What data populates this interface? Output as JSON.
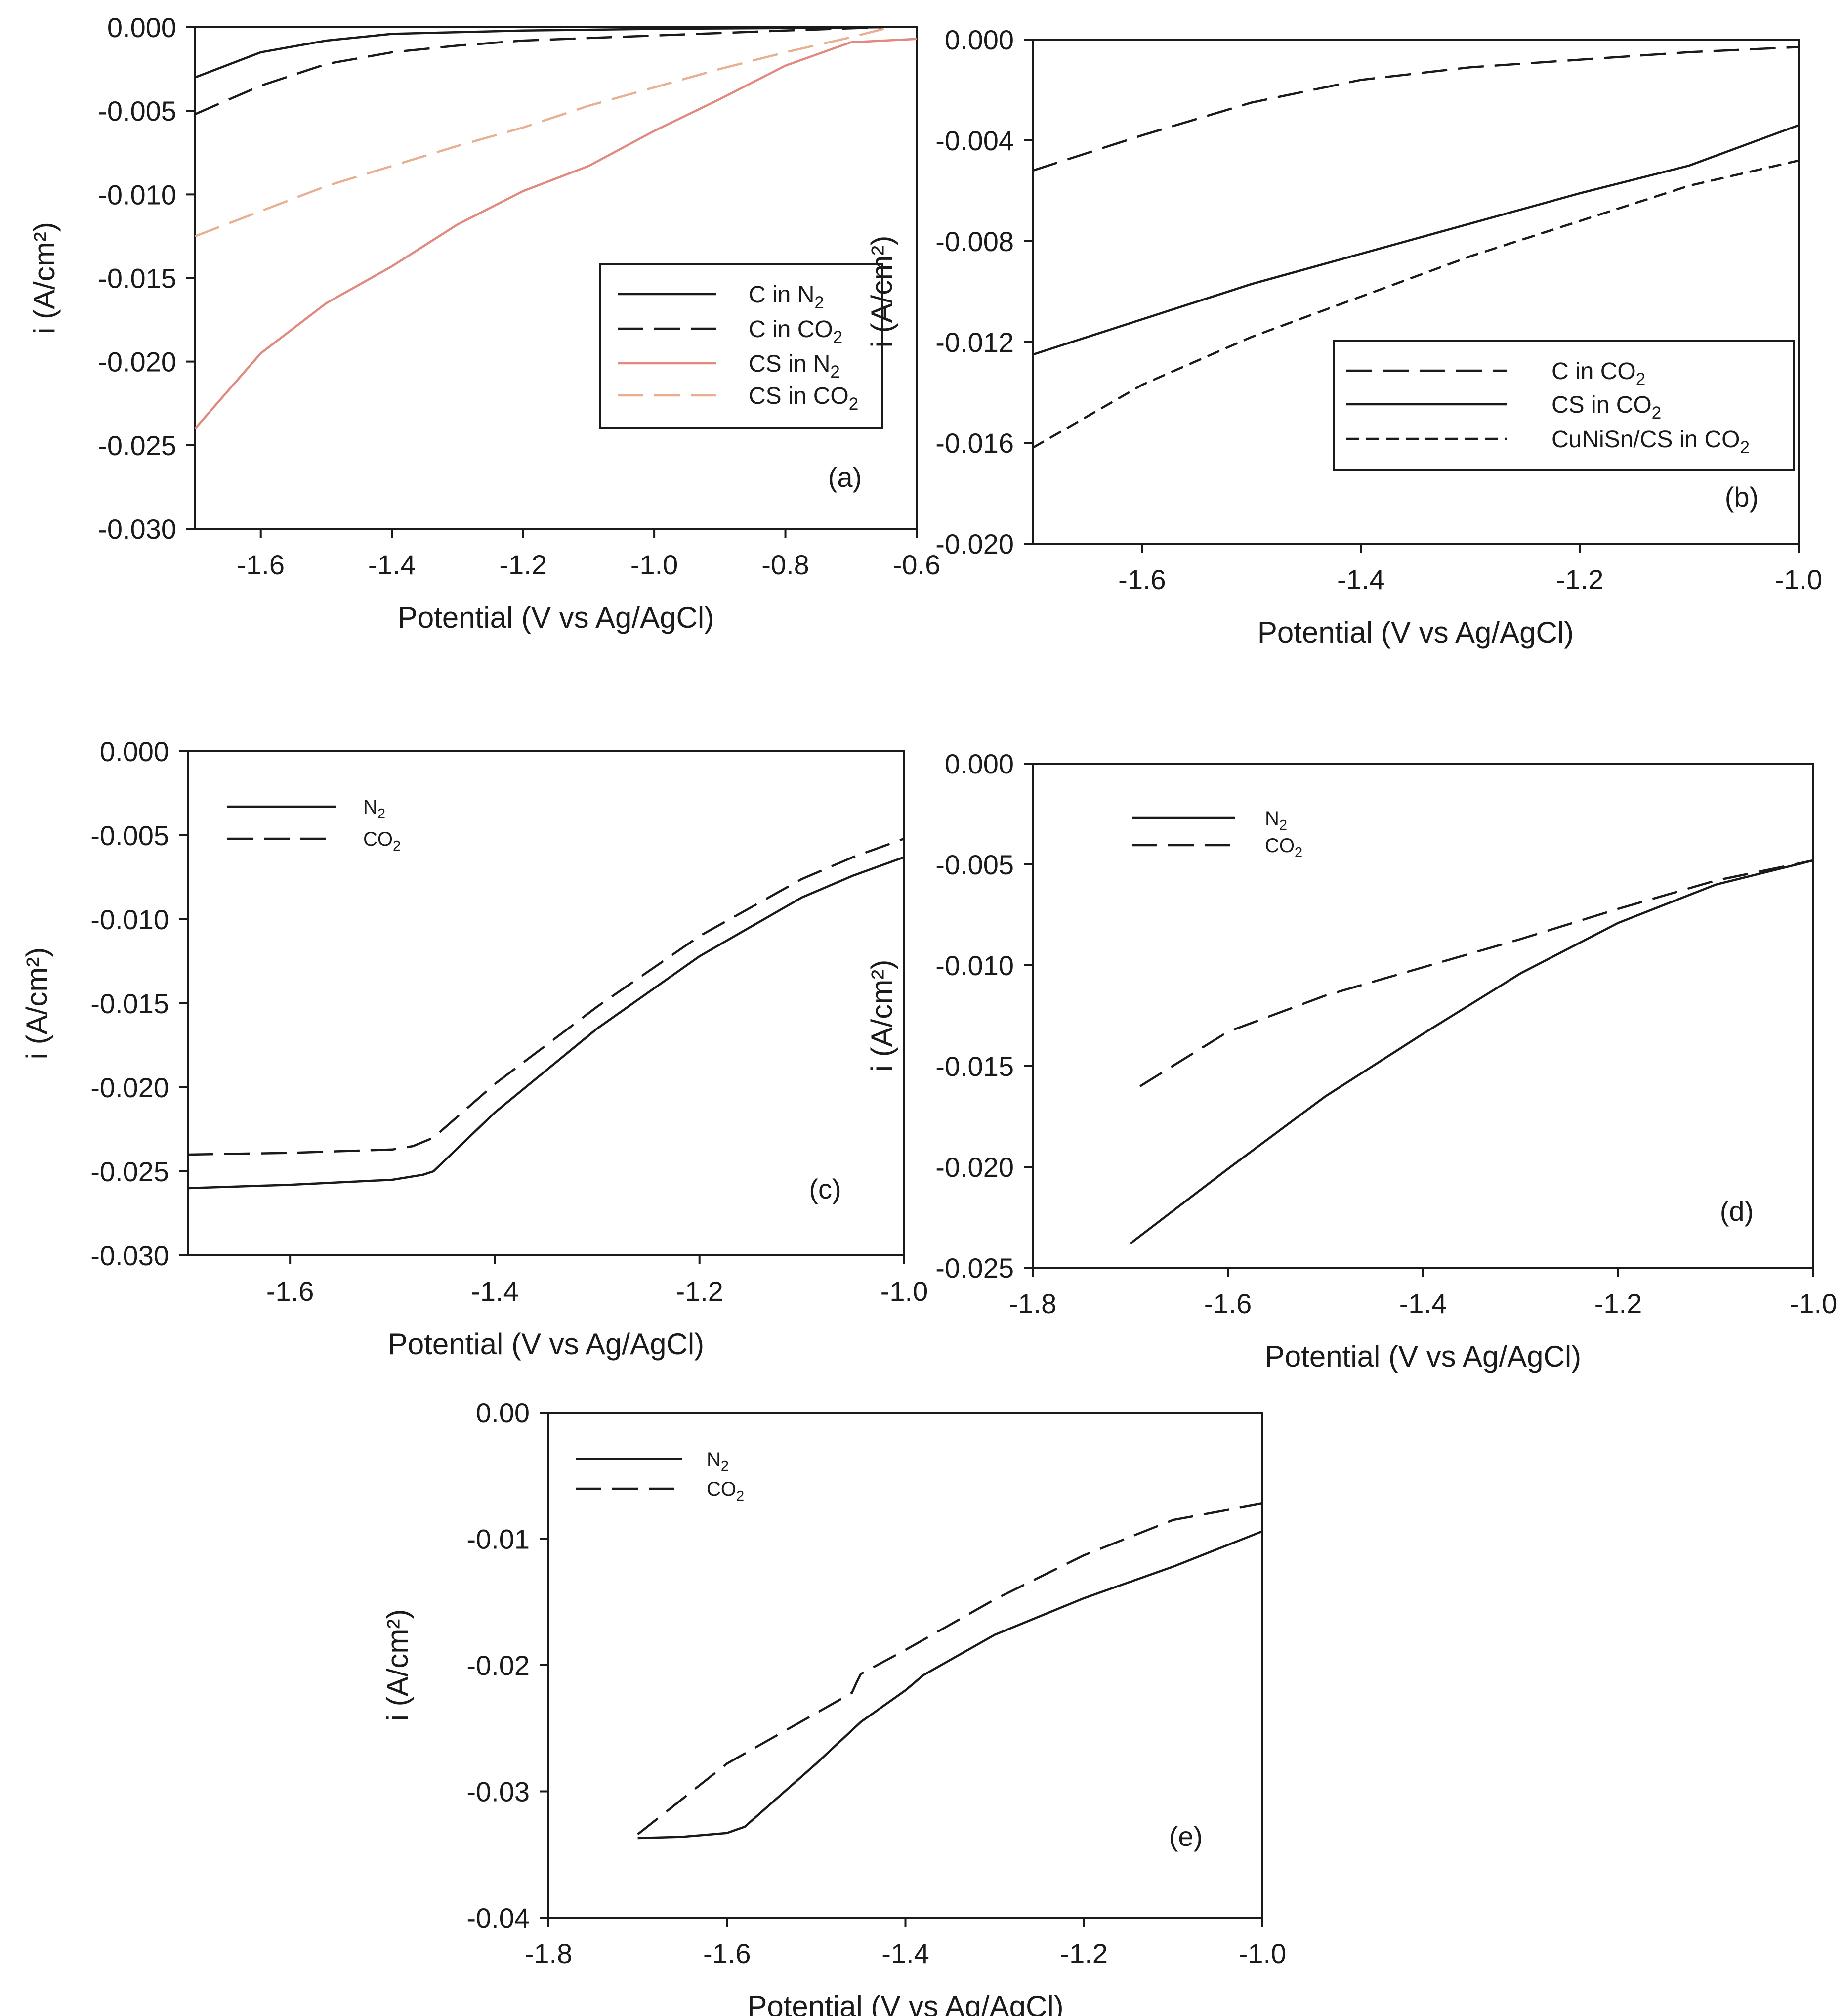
{
  "chart_data": [
    {
      "id": "a",
      "type": "line",
      "panel_label": "(a)",
      "xlabel": "Potential (V vs Ag/AgCl)",
      "ylabel": "i (A/cm²)",
      "xlim": [
        -1.7,
        -0.6
      ],
      "ylim": [
        -0.03,
        0.0
      ],
      "xticks": [
        -1.6,
        -1.4,
        -1.2,
        -1.0,
        -0.8,
        -0.6
      ],
      "xtick_labels": [
        "-1.6",
        "-1.4",
        "-1.2",
        "-1.0",
        "-0.8",
        "-0.6"
      ],
      "yticks": [
        0.0,
        -0.005,
        -0.01,
        -0.015,
        -0.02,
        -0.025,
        -0.03
      ],
      "ytick_labels": [
        "0.000",
        "-0.005",
        "-0.010",
        "-0.015",
        "-0.020",
        "-0.025",
        "-0.030"
      ],
      "legend_position": "right",
      "series": [
        {
          "name": "C in N₂",
          "color": "#1a1a1a",
          "dash": "solid",
          "x": [
            -1.7,
            -1.6,
            -1.5,
            -1.4,
            -1.3,
            -1.2,
            -1.0,
            -0.8,
            -0.65
          ],
          "y": [
            -0.003,
            -0.0015,
            -0.0008,
            -0.0004,
            -0.0003,
            -0.0002,
            -0.0001,
            -5e-05,
            0.0
          ]
        },
        {
          "name": "C in CO₂",
          "color": "#1a1a1a",
          "dash": "long",
          "x": [
            -1.7,
            -1.6,
            -1.5,
            -1.4,
            -1.3,
            -1.2,
            -1.0,
            -0.8,
            -0.65
          ],
          "y": [
            -0.0052,
            -0.0035,
            -0.0022,
            -0.0015,
            -0.0011,
            -0.0008,
            -0.0005,
            -0.0002,
            0.0
          ]
        },
        {
          "name": "CS in N₂",
          "color": "#e08a80",
          "dash": "solid",
          "x": [
            -1.7,
            -1.6,
            -1.5,
            -1.4,
            -1.3,
            -1.2,
            -1.1,
            -1.0,
            -0.9,
            -0.8,
            -0.7,
            -0.6
          ],
          "y": [
            -0.024,
            -0.0195,
            -0.0165,
            -0.0143,
            -0.0118,
            -0.0098,
            -0.0083,
            -0.0062,
            -0.0043,
            -0.0023,
            -0.0009,
            -0.0007
          ]
        },
        {
          "name": "CS in CO₂",
          "color": "#e8b090",
          "dash": "long",
          "x": [
            -1.7,
            -1.6,
            -1.5,
            -1.4,
            -1.3,
            -1.2,
            -1.1,
            -1.0,
            -0.9,
            -0.8,
            -0.7,
            -0.65
          ],
          "y": [
            -0.0125,
            -0.011,
            -0.0095,
            -0.0083,
            -0.0071,
            -0.006,
            -0.0047,
            -0.0036,
            -0.0025,
            -0.0015,
            -0.0006,
            -0.0001
          ]
        }
      ]
    },
    {
      "id": "b",
      "type": "line",
      "panel_label": "(b)",
      "xlabel": "Potential (V vs Ag/AgCl)",
      "ylabel": "i (A/cm²)",
      "xlim": [
        -1.7,
        -1.0
      ],
      "ylim": [
        -0.02,
        0.0
      ],
      "xticks": [
        -1.6,
        -1.4,
        -1.2,
        -1.0
      ],
      "xtick_labels": [
        "-1.6",
        "-1.4",
        "-1.2",
        "-1.0"
      ],
      "yticks": [
        0.0,
        -0.004,
        -0.008,
        -0.012,
        -0.016,
        -0.02
      ],
      "ytick_labels": [
        "0.000",
        "-0.004",
        "-0.008",
        "-0.012",
        "-0.016",
        "-0.020"
      ],
      "legend_position": "bottom-right",
      "series": [
        {
          "name": "C in CO₂",
          "color": "#1a1a1a",
          "dash": "long",
          "x": [
            -1.7,
            -1.6,
            -1.5,
            -1.4,
            -1.3,
            -1.2,
            -1.1,
            -1.0
          ],
          "y": [
            -0.0052,
            -0.0038,
            -0.0025,
            -0.0016,
            -0.0011,
            -0.0008,
            -0.0005,
            -0.0003
          ]
        },
        {
          "name": "CS in CO₂",
          "color": "#1a1a1a",
          "dash": "solid",
          "x": [
            -1.7,
            -1.6,
            -1.5,
            -1.4,
            -1.3,
            -1.2,
            -1.1,
            -1.0
          ],
          "y": [
            -0.0125,
            -0.0111,
            -0.0097,
            -0.0085,
            -0.0073,
            -0.0061,
            -0.005,
            -0.0034
          ]
        },
        {
          "name": "CuNiSn/CS in CO₂",
          "color": "#1a1a1a",
          "dash": "short",
          "x": [
            -1.7,
            -1.6,
            -1.5,
            -1.4,
            -1.3,
            -1.2,
            -1.1,
            -1.0
          ],
          "y": [
            -0.0162,
            -0.0137,
            -0.0118,
            -0.0102,
            -0.0086,
            -0.0072,
            -0.0058,
            -0.0048
          ]
        }
      ]
    },
    {
      "id": "c",
      "type": "line",
      "panel_label": "(c)",
      "xlabel": "Potential (V vs Ag/AgCl)",
      "ylabel": "i (A/cm²)",
      "xlim": [
        -1.7,
        -1.0
      ],
      "ylim": [
        -0.03,
        0.0
      ],
      "xticks": [
        -1.6,
        -1.4,
        -1.2,
        -1.0
      ],
      "xtick_labels": [
        "-1.6",
        "-1.4",
        "-1.2",
        "-1.0"
      ],
      "yticks": [
        0.0,
        -0.005,
        -0.01,
        -0.015,
        -0.02,
        -0.025,
        -0.03
      ],
      "ytick_labels": [
        "0.000",
        "-0.005",
        "-0.010",
        "-0.015",
        "-0.020",
        "-0.025",
        "-0.030"
      ],
      "legend_position": "top-left",
      "series": [
        {
          "name": "N₂",
          "color": "#1a1a1a",
          "dash": "solid",
          "x": [
            -1.7,
            -1.6,
            -1.5,
            -1.47,
            -1.46,
            -1.4,
            -1.3,
            -1.2,
            -1.1,
            -1.05,
            -1.0
          ],
          "y": [
            -0.026,
            -0.0258,
            -0.0255,
            -0.0252,
            -0.025,
            -0.0215,
            -0.0165,
            -0.0122,
            -0.0087,
            -0.0074,
            -0.0063
          ]
        },
        {
          "name": "CO₂",
          "color": "#1a1a1a",
          "dash": "long",
          "x": [
            -1.7,
            -1.6,
            -1.5,
            -1.48,
            -1.46,
            -1.4,
            -1.3,
            -1.2,
            -1.1,
            -1.05,
            -1.0
          ],
          "y": [
            -0.024,
            -0.0239,
            -0.0237,
            -0.0235,
            -0.023,
            -0.0198,
            -0.0152,
            -0.011,
            -0.0076,
            -0.0063,
            -0.0052
          ]
        }
      ]
    },
    {
      "id": "d",
      "type": "line",
      "panel_label": "(d)",
      "xlabel": "Potential (V vs Ag/AgCl)",
      "ylabel": "i (A/cm²)",
      "xlim": [
        -1.8,
        -1.0
      ],
      "ylim": [
        -0.025,
        0.0
      ],
      "xticks": [
        -1.8,
        -1.6,
        -1.4,
        -1.2,
        -1.0
      ],
      "xtick_labels": [
        "-1.8",
        "-1.6",
        "-1.4",
        "-1.2",
        "-1.0"
      ],
      "yticks": [
        0.0,
        -0.005,
        -0.01,
        -0.015,
        -0.02,
        -0.025
      ],
      "ytick_labels": [
        "0.000",
        "-0.005",
        "-0.010",
        "-0.015",
        "-0.020",
        "-0.025"
      ],
      "legend_position": "top-left",
      "series": [
        {
          "name": "N₂",
          "color": "#1a1a1a",
          "dash": "solid",
          "x": [
            -1.7,
            -1.6,
            -1.5,
            -1.4,
            -1.3,
            -1.2,
            -1.1,
            -1.0
          ],
          "y": [
            -0.0238,
            -0.0201,
            -0.0165,
            -0.0134,
            -0.0104,
            -0.0079,
            -0.006,
            -0.0048
          ]
        },
        {
          "name": "CO₂",
          "color": "#1a1a1a",
          "dash": "long",
          "x": [
            -1.69,
            -1.6,
            -1.5,
            -1.4,
            -1.3,
            -1.2,
            -1.1,
            -1.0
          ],
          "y": [
            -0.016,
            -0.0133,
            -0.0115,
            -0.0101,
            -0.0087,
            -0.0072,
            -0.0058,
            -0.0048
          ]
        }
      ]
    },
    {
      "id": "e",
      "type": "line",
      "panel_label": "(e)",
      "xlabel": "Potential (V vs Ag/AgCl)",
      "ylabel": "i (A/cm²)",
      "xlim": [
        -1.8,
        -1.0
      ],
      "ylim": [
        -0.04,
        0.0
      ],
      "xticks": [
        -1.8,
        -1.6,
        -1.4,
        -1.2,
        -1.0
      ],
      "xtick_labels": [
        "-1.8",
        "-1.6",
        "-1.4",
        "-1.2",
        "-1.0"
      ],
      "yticks": [
        0.0,
        -0.01,
        -0.02,
        -0.03,
        -0.04
      ],
      "ytick_labels": [
        "0.00",
        "-0.01",
        "-0.02",
        "-0.03",
        "-0.04"
      ],
      "legend_position": "top-left",
      "series": [
        {
          "name": "N₂",
          "color": "#1a1a1a",
          "dash": "solid",
          "x": [
            -1.7,
            -1.65,
            -1.6,
            -1.58,
            -1.5,
            -1.45,
            -1.4,
            -1.38,
            -1.3,
            -1.2,
            -1.1,
            -1.0
          ],
          "y": [
            -0.0337,
            -0.0336,
            -0.0333,
            -0.0328,
            -0.0278,
            -0.0245,
            -0.022,
            -0.0208,
            -0.0176,
            -0.0147,
            -0.0122,
            -0.0094
          ]
        },
        {
          "name": "CO₂",
          "color": "#1a1a1a",
          "dash": "long",
          "x": [
            -1.7,
            -1.6,
            -1.5,
            -1.46,
            -1.455,
            -1.45,
            -1.4,
            -1.3,
            -1.2,
            -1.1,
            -1.0
          ],
          "y": [
            -0.0334,
            -0.0278,
            -0.0238,
            -0.0222,
            -0.0214,
            -0.0207,
            -0.0188,
            -0.0148,
            -0.0113,
            -0.0085,
            -0.0072
          ]
        }
      ]
    }
  ]
}
